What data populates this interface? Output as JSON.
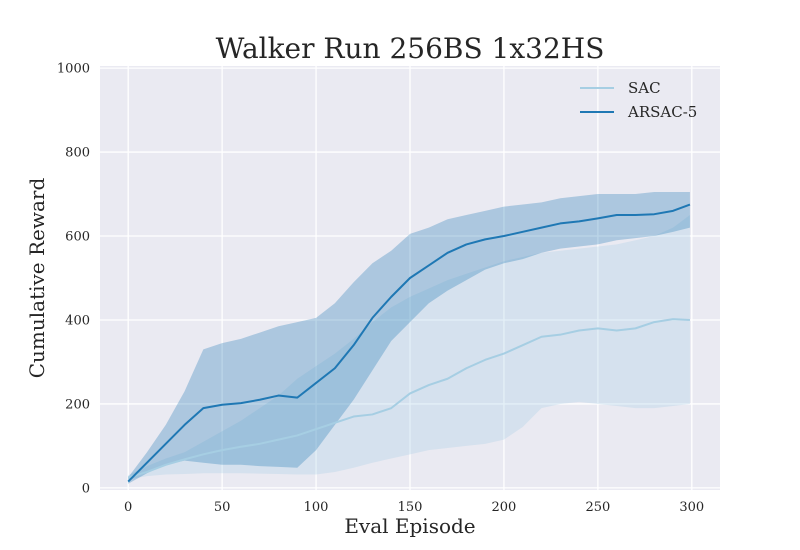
{
  "chart_data": {
    "type": "line",
    "title": "Walker Run 256BS 1x32HS",
    "xlabel": "Eval Episode",
    "ylabel": "Cumulative Reward",
    "xlim": [
      -15,
      315
    ],
    "ylim": [
      -5,
      1005
    ],
    "xticks": [
      0,
      50,
      100,
      150,
      200,
      250,
      300
    ],
    "yticks": [
      0,
      200,
      400,
      600,
      800,
      1000
    ],
    "grid": true,
    "legend_position": "top-right",
    "series": [
      {
        "name": "SAC",
        "color": "#a6cee3",
        "x": [
          0,
          10,
          20,
          30,
          40,
          50,
          60,
          70,
          80,
          90,
          100,
          110,
          120,
          130,
          140,
          150,
          160,
          170,
          180,
          190,
          200,
          210,
          220,
          230,
          240,
          250,
          260,
          270,
          280,
          290,
          299
        ],
        "y": [
          25,
          38,
          55,
          68,
          80,
          90,
          98,
          105,
          115,
          125,
          140,
          155,
          170,
          175,
          190,
          225,
          245,
          260,
          285,
          305,
          320,
          340,
          360,
          365,
          375,
          380,
          375,
          380,
          395,
          402,
          400
        ],
        "upper": [
          30,
          52,
          70,
          85,
          110,
          135,
          160,
          190,
          220,
          260,
          290,
          320,
          355,
          395,
          430,
          455,
          475,
          495,
          510,
          525,
          540,
          550,
          560,
          565,
          570,
          575,
          580,
          590,
          600,
          620,
          650
        ],
        "lower": [
          20,
          28,
          32,
          33,
          35,
          35,
          35,
          34,
          33,
          32,
          32,
          38,
          48,
          60,
          70,
          80,
          90,
          95,
          100,
          105,
          115,
          145,
          190,
          200,
          205,
          200,
          195,
          190,
          190,
          195,
          200
        ]
      },
      {
        "name": "ARSAC-5",
        "color": "#1f78b4",
        "x": [
          0,
          10,
          20,
          30,
          40,
          50,
          60,
          70,
          80,
          90,
          100,
          110,
          120,
          130,
          140,
          150,
          160,
          170,
          180,
          190,
          200,
          210,
          220,
          230,
          240,
          250,
          260,
          270,
          280,
          290,
          299
        ],
        "y": [
          15,
          60,
          105,
          150,
          190,
          198,
          202,
          210,
          220,
          215,
          250,
          285,
          340,
          405,
          455,
          500,
          530,
          560,
          580,
          592,
          600,
          610,
          620,
          630,
          635,
          642,
          650,
          650,
          652,
          660,
          675
        ],
        "upper": [
          25,
          85,
          150,
          230,
          330,
          345,
          355,
          370,
          385,
          395,
          405,
          440,
          490,
          535,
          565,
          605,
          620,
          640,
          650,
          660,
          670,
          675,
          680,
          690,
          695,
          700,
          700,
          700,
          705,
          705,
          705
        ],
        "lower": [
          10,
          35,
          55,
          65,
          60,
          55,
          55,
          52,
          50,
          48,
          90,
          150,
          210,
          280,
          350,
          395,
          440,
          470,
          495,
          520,
          535,
          545,
          560,
          570,
          575,
          580,
          590,
          595,
          600,
          610,
          620
        ]
      }
    ]
  }
}
